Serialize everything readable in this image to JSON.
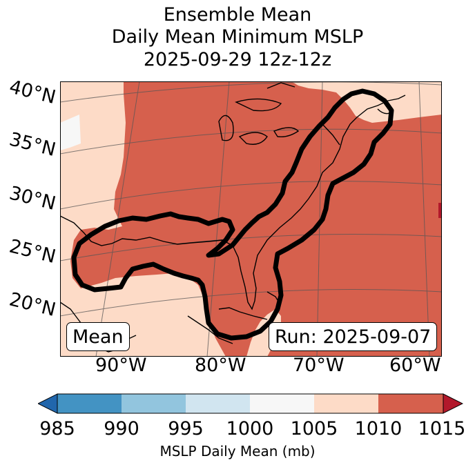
{
  "title": {
    "line1": "Ensemble Mean",
    "line2": "Daily Mean Minimum MSLP",
    "line3": "2025-09-29 12z-12z"
  },
  "map": {
    "lat_labels": [
      "40°N",
      "35°N",
      "30°N",
      "25°N",
      "20°N"
    ],
    "lon_labels": [
      "90°W",
      "80°W",
      "70°W",
      "60°W"
    ],
    "badge_left": "Mean",
    "badge_right": "Run: 2025-09-07"
  },
  "colorbar": {
    "ticks": [
      "985",
      "990",
      "995",
      "1000",
      "1005",
      "1010",
      "1015"
    ],
    "label": "MSLP Daily Mean (mb)",
    "colors": {
      "under": "#2166ac",
      "985-990": "#4393c3",
      "990-995": "#92c5de",
      "995-1000": "#d1e5f0",
      "1000-1005": "#f7f7f7",
      "1005-1010": "#fddbc7",
      "1010-1015": "#d6604d",
      "over": "#b2182b"
    }
  }
}
